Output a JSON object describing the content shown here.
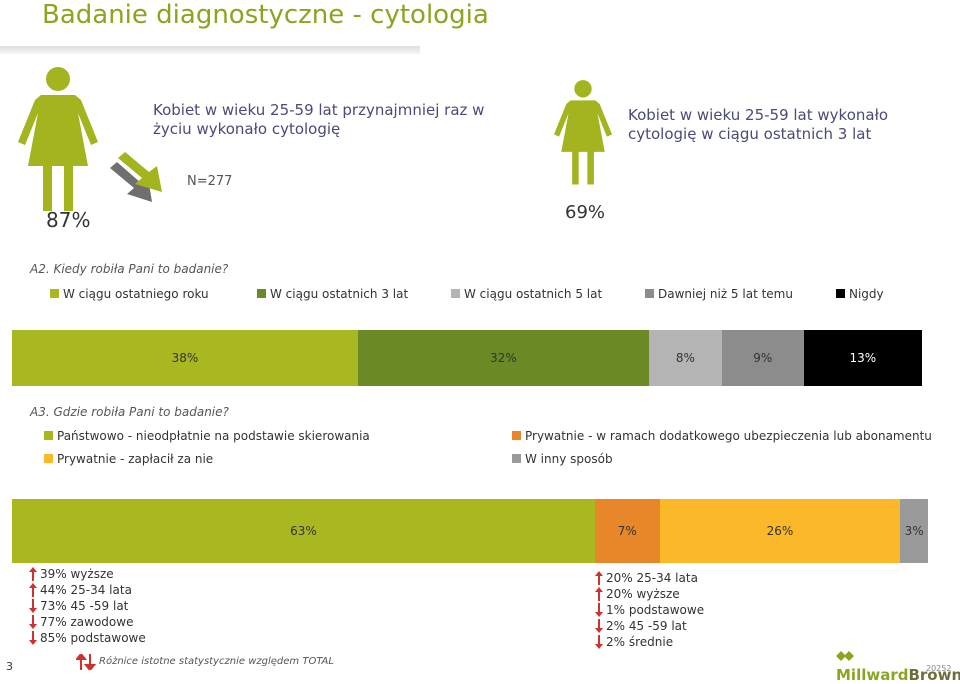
{
  "title": "Badanie diagnostyczne - cytologia",
  "figures": {
    "lifetime": {
      "percent": "87%",
      "description": "Kobiet w wieku 25-59 lat przynajmniej raz w życiu wykonało cytologię"
    },
    "three_years": {
      "percent": "69%",
      "description": "Kobiet w wieku 25-59 lat wykonało cytologię w ciągu ostatnich 3 lat"
    },
    "n_label": "N=277"
  },
  "colors": {
    "olive_light": "#a9b821",
    "olive_dark": "#6b8a26",
    "gray_light": "#b4b4b4",
    "gray_mid": "#8c8c8c",
    "black": "#000000",
    "orange": "#e8862a",
    "yellow": "#fbb829",
    "gray_other": "#9a9a9a",
    "figure_green": "#a3b41f",
    "arrow_red": "#d0312d"
  },
  "chart_data": [
    {
      "type": "bar",
      "question": "A2. Kiedy robiła Pani to badanie?",
      "orientation": "stacked-horizontal",
      "series": [
        {
          "name": "W ciągu ostatniego roku",
          "value": 38,
          "label": "38%",
          "color": "#a9b821"
        },
        {
          "name": "W ciągu ostatnich 3 lat",
          "value": 32,
          "label": "32%",
          "color": "#6b8a26"
        },
        {
          "name": "W ciągu ostatnich 5 lat",
          "value": 8,
          "label": "8%",
          "color": "#b4b4b4"
        },
        {
          "name": "Dawniej niż 5 lat temu",
          "value": 9,
          "label": "9%",
          "color": "#8c8c8c"
        },
        {
          "name": "Nigdy",
          "value": 13,
          "label": "13%",
          "color": "#000000"
        }
      ],
      "legend_position": "top"
    },
    {
      "type": "bar",
      "question": "A3. Gdzie robiła Pani to badanie?",
      "orientation": "stacked-horizontal",
      "series": [
        {
          "name": "Państwowo - nieodpłatnie na podstawie skierowania",
          "value": 63,
          "label": "63%",
          "color": "#a9b821"
        },
        {
          "name": "Prywatnie - w ramach dodatkowego ubezpieczenia lub abonamentu",
          "value": 7,
          "label": "7%",
          "color": "#e8862a"
        },
        {
          "name": "Prywatnie - zapłacił za nie",
          "value": 26,
          "label": "26%",
          "color": "#fbb829"
        },
        {
          "name": "W inny sposób",
          "value": 3,
          "label": "3%",
          "color": "#9a9a9a"
        }
      ],
      "legend_position": "top"
    }
  ],
  "notes_left": [
    {
      "text": "39% wyższe",
      "arrow": "up"
    },
    {
      "text": "44% 25-34 lata",
      "arrow": "up"
    },
    {
      "text": "73% 45 -59 lat",
      "arrow": "down"
    },
    {
      "text": "77% zawodowe",
      "arrow": "down"
    },
    {
      "text": "85% podstawowe",
      "arrow": "down"
    }
  ],
  "notes_right": [
    {
      "text": "20% 25-34 lata",
      "arrow": "up"
    },
    {
      "text": "20% wyższe",
      "arrow": "up"
    },
    {
      "text": "1% podstawowe",
      "arrow": "down"
    },
    {
      "text": "2% 45 -59 lat",
      "arrow": "down"
    },
    {
      "text": "2% średnie",
      "arrow": "down"
    }
  ],
  "footnote": "Różnice istotne statystycznie względem TOTAL",
  "page_number": "3",
  "logo": {
    "part1": "Millward",
    "part2": "Brown",
    "small": "20252"
  }
}
